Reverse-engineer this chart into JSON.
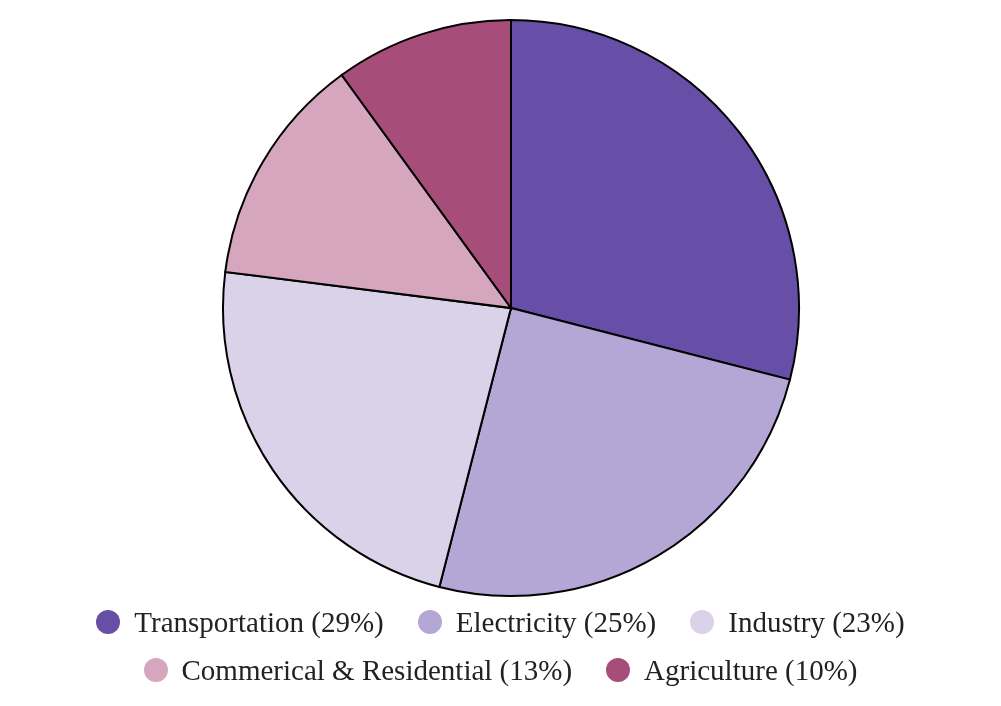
{
  "chart_data": {
    "type": "pie",
    "categories": [
      "Transportation (29%)",
      "Electricity (25%)",
      "Industry (23%)",
      "Commerical & Residential (13%)",
      "Agriculture (10%)"
    ],
    "values": [
      29,
      25,
      23,
      13,
      10
    ],
    "colors": [
      "#674ea7",
      "#b4a7d6",
      "#d9d2e9",
      "#d5a6bd",
      "#a64d79"
    ],
    "legend": "bottom"
  }
}
